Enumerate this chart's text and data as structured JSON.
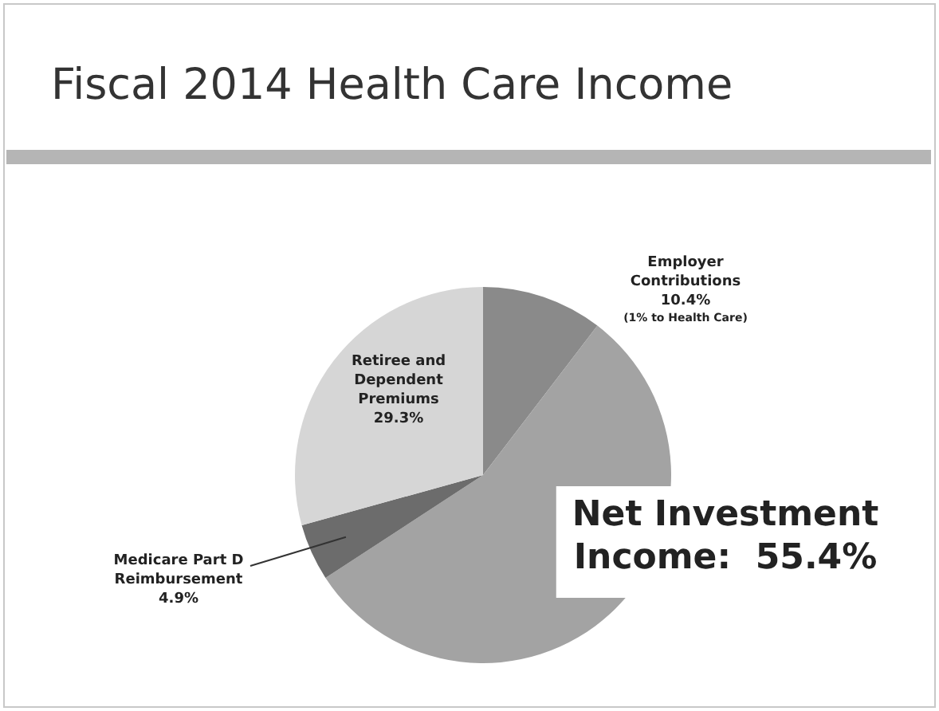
{
  "chart_data": {
    "type": "pie",
    "title": "Fiscal 2014 Health Care Income",
    "categories": [
      "Employer Contributions",
      "Net Investment Income",
      "Medicare Part D Reimbursement",
      "Retiree and Dependent Premiums"
    ],
    "values": [
      10.4,
      55.4,
      4.9,
      29.3
    ],
    "colors": [
      "#8a8a8a",
      "#a3a3a3",
      "#6c6c6c",
      "#d6d6d6"
    ],
    "value_labels": [
      "10.4%",
      "55.4%",
      "4.9%",
      "29.3%"
    ],
    "annotations": [
      "(1% to Health Care)"
    ],
    "legend": false
  }
}
